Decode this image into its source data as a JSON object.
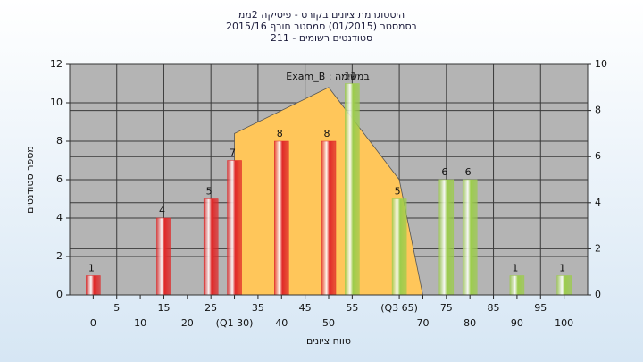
{
  "chart_data": {
    "type": "histogram",
    "title": [
      "היסטוגרמת ציונים בקורס - פיסיקה 2ממ",
      "בסמסטר (01/2015) סמסטר חורף 2015/16",
      "סטודנטים רשומים - 211"
    ],
    "annotation": "Exam_B : במשימה",
    "xlabel": "טווח ציונים",
    "ylabel": "מספר סטודנטים",
    "x": [
      0,
      15,
      25,
      30,
      40,
      50,
      55,
      65,
      75,
      80,
      90,
      100
    ],
    "values": [
      1,
      4,
      5,
      7,
      8,
      8,
      11,
      5,
      6,
      6,
      1,
      1
    ],
    "colors": [
      "#e02828",
      "#e02828",
      "#e02828",
      "#e02828",
      "#e02828",
      "#e02828",
      "#9ccc4c",
      "#9ccc4c",
      "#9ccc4c",
      "#9ccc4c",
      "#9ccc4c",
      "#9ccc4c"
    ],
    "area": {
      "x": [
        30,
        50,
        65,
        70
      ],
      "values": [
        7,
        9,
        5,
        0
      ],
      "color": "#ffc65a",
      "axis": "y2"
    },
    "xlim": [
      -5,
      105
    ],
    "xticks": [
      0,
      5,
      10,
      15,
      20,
      25,
      {
        "value": 30,
        "label": "(Q1 30)"
      },
      35,
      40,
      45,
      50,
      55,
      {
        "value": 65,
        "label": "(Q3 65)"
      },
      70,
      75,
      80,
      85,
      90,
      95,
      100
    ],
    "ylim": [
      0,
      12
    ],
    "yticks": [
      0,
      2,
      4,
      6,
      8,
      10,
      12
    ],
    "y2lim": [
      0,
      10
    ],
    "y2ticks": [
      0,
      2,
      4,
      6,
      8,
      10
    ],
    "grid": true
  }
}
